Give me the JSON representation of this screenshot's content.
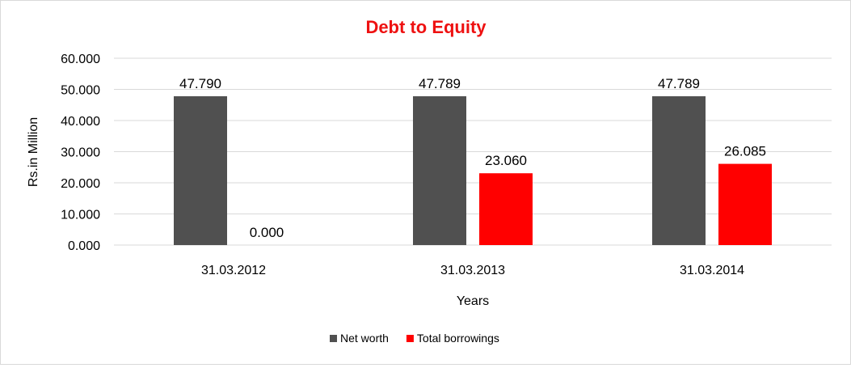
{
  "chart_data": {
    "type": "bar",
    "title": "Debt to Equity",
    "xlabel": "Years",
    "ylabel": "Rs.in Million",
    "categories": [
      "31.03.2012",
      "31.03.2013",
      "31.03.2014"
    ],
    "series": [
      {
        "name": "Net worth",
        "color": "#505050",
        "values": [
          47.79,
          47.789,
          47.789
        ],
        "labels": [
          "47.790",
          "47.789",
          "47.789"
        ]
      },
      {
        "name": "Total borrowings",
        "color": "#ff0000",
        "values": [
          0.0,
          23.06,
          26.085
        ],
        "labels": [
          "0.000",
          "23.060",
          "26.085"
        ]
      }
    ],
    "ylim": [
      0,
      60
    ],
    "yticks": [
      0,
      10,
      20,
      30,
      40,
      50,
      60
    ],
    "ytick_labels": [
      "0.000",
      "10.000",
      "20.000",
      "30.000",
      "40.000",
      "50.000",
      "60.000"
    ],
    "grid": true,
    "legend_position": "bottom",
    "title_color": "#ee1111"
  }
}
